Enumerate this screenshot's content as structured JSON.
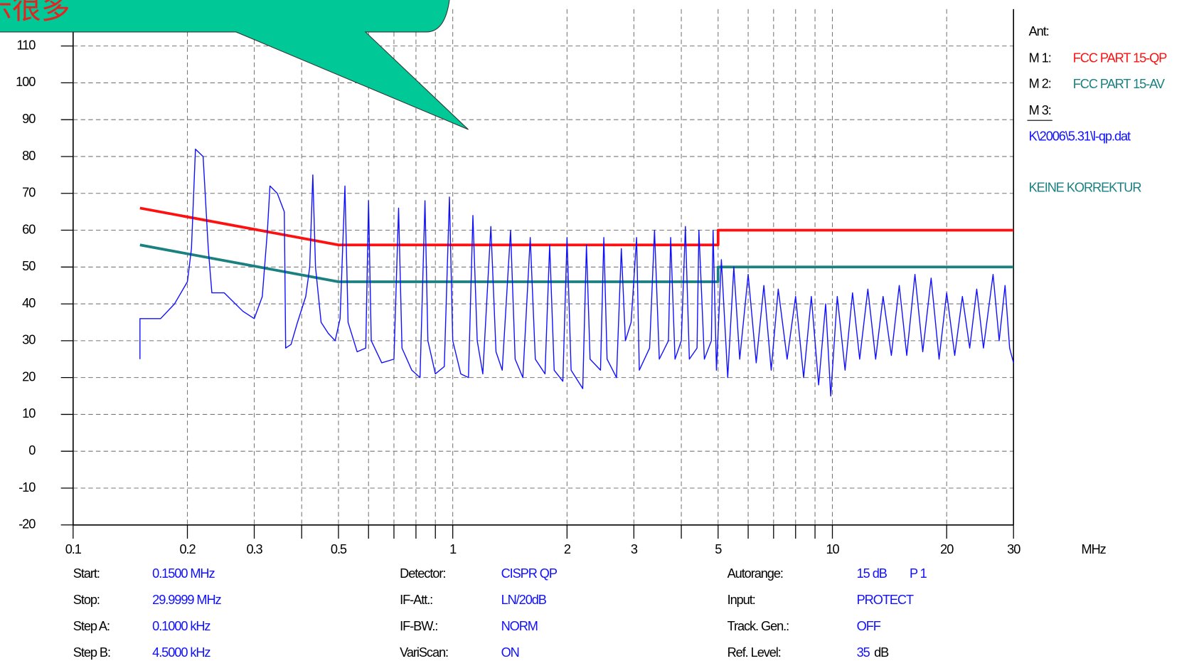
{
  "chart_data": {
    "type": "line",
    "callout": "示很多",
    "x_unit": "MHz",
    "xlog": true,
    "xlim": [
      0.1,
      30
    ],
    "xticks": [
      0.1,
      0.2,
      0.3,
      0.5,
      1,
      2,
      3,
      5,
      10,
      20,
      30
    ],
    "xminor": [
      0.4,
      0.6,
      0.7,
      0.8,
      0.9,
      4,
      6,
      7,
      8,
      9
    ],
    "ylim": [
      -20,
      120
    ],
    "yticks": [
      -20,
      -10,
      0,
      10,
      20,
      30,
      40,
      50,
      60,
      70,
      80,
      90,
      100,
      110
    ],
    "grid": true,
    "antenna": "Ant:",
    "legend_labels": [
      "M 1:",
      "M 2:",
      "M 3:"
    ],
    "file": "K\\2006\\5.31\\l-qp.dat",
    "correction": "KEINE KORREKTUR",
    "series": [
      {
        "name": "FCC PART 15-QP",
        "color": "#ff1010",
        "x": [
          0.15,
          0.5,
          5,
          5,
          30
        ],
        "values": [
          66,
          56,
          56,
          60,
          60
        ]
      },
      {
        "name": "FCC PART 15-AV",
        "color": "#1a8080",
        "x": [
          0.15,
          0.5,
          5,
          5,
          30
        ],
        "values": [
          56,
          46,
          46,
          50,
          50
        ]
      },
      {
        "color": "#1010ff",
        "x": [
          0.15,
          0.15,
          0.17,
          0.185,
          0.2,
          0.205,
          0.21,
          0.22,
          0.227,
          0.232,
          0.25,
          0.28,
          0.3,
          0.315,
          0.325,
          0.33,
          0.345,
          0.36,
          0.363,
          0.375,
          0.39,
          0.41,
          0.42,
          0.428,
          0.435,
          0.45,
          0.47,
          0.49,
          0.505,
          0.52,
          0.53,
          0.56,
          0.59,
          0.6,
          0.61,
          0.65,
          0.7,
          0.72,
          0.735,
          0.78,
          0.82,
          0.845,
          0.86,
          0.9,
          0.95,
          0.98,
          1.0,
          1.05,
          1.1,
          1.13,
          1.16,
          1.2,
          1.26,
          1.3,
          1.35,
          1.42,
          1.46,
          1.53,
          1.6,
          1.65,
          1.75,
          1.8,
          1.85,
          1.95,
          2.0,
          2.05,
          2.2,
          2.25,
          2.3,
          2.45,
          2.5,
          2.55,
          2.7,
          2.78,
          2.85,
          2.95,
          3.05,
          3.1,
          3.3,
          3.4,
          3.5,
          3.7,
          3.75,
          3.85,
          4.0,
          4.1,
          4.2,
          4.4,
          4.45,
          4.6,
          4.8,
          4.85,
          4.95,
          5.1,
          5.3,
          5.5,
          5.7,
          6.0,
          6.3,
          6.6,
          6.9,
          7.2,
          7.6,
          8.0,
          8.4,
          8.8,
          9.2,
          9.6,
          9.9,
          10.3,
          10.8,
          11.3,
          11.8,
          12.4,
          13.0,
          13.6,
          14.3,
          15.0,
          15.7,
          16.5,
          17.3,
          18.2,
          19.1,
          20.0,
          21.0,
          22.0,
          23.0,
          24.0,
          25.0,
          26.5,
          27.5,
          28.5,
          29.3,
          30.0
        ],
        "values": [
          25,
          36,
          36,
          40,
          46,
          55,
          82,
          80,
          55,
          43,
          43,
          38,
          36,
          42,
          60,
          72,
          70,
          65,
          28,
          29,
          35,
          42,
          50,
          75,
          50,
          35,
          32,
          30,
          36,
          72,
          35,
          27,
          28,
          68,
          30,
          24,
          25,
          66,
          28,
          22,
          20,
          68,
          30,
          21,
          23,
          69,
          30,
          21,
          20,
          64,
          30,
          21,
          61,
          27,
          22,
          60,
          25,
          20,
          58,
          25,
          21,
          56,
          22,
          19,
          58,
          22,
          17,
          56,
          25,
          22,
          58,
          25,
          20,
          55,
          30,
          35,
          58,
          22,
          28,
          60,
          25,
          30,
          58,
          25,
          30,
          61,
          25,
          28,
          60,
          25,
          30,
          60,
          22,
          52,
          20,
          50,
          25,
          48,
          24,
          45,
          22,
          44,
          25,
          42,
          20,
          42,
          18,
          40,
          15,
          42,
          22,
          43,
          25,
          44,
          25,
          42,
          26,
          45,
          26,
          48,
          27,
          47,
          25,
          43,
          26,
          42,
          28,
          44,
          28,
          48,
          30,
          45,
          28,
          24
        ]
      }
    ],
    "settings": [
      [
        [
          "Start:",
          "0.1500 MHz"
        ],
        [
          "Stop:",
          "29.9999 MHz"
        ],
        [
          "Step A:",
          "0.1000 kHz"
        ],
        [
          "Step B:",
          "4.5000 kHz"
        ]
      ],
      [
        [
          "Detector:",
          "CISPR QP"
        ],
        [
          "IF-Att.:",
          "LN/20dB"
        ],
        [
          "IF-BW.:",
          "NORM"
        ],
        [
          "VariScan:",
          "ON"
        ]
      ],
      [
        [
          "Autorange:",
          "15 dB",
          "P 1"
        ],
        [
          "Input:",
          "PROTECT"
        ],
        [
          "Track. Gen.:",
          "OFF"
        ],
        [
          "Ref. Level:",
          "35",
          "dB"
        ]
      ]
    ]
  }
}
